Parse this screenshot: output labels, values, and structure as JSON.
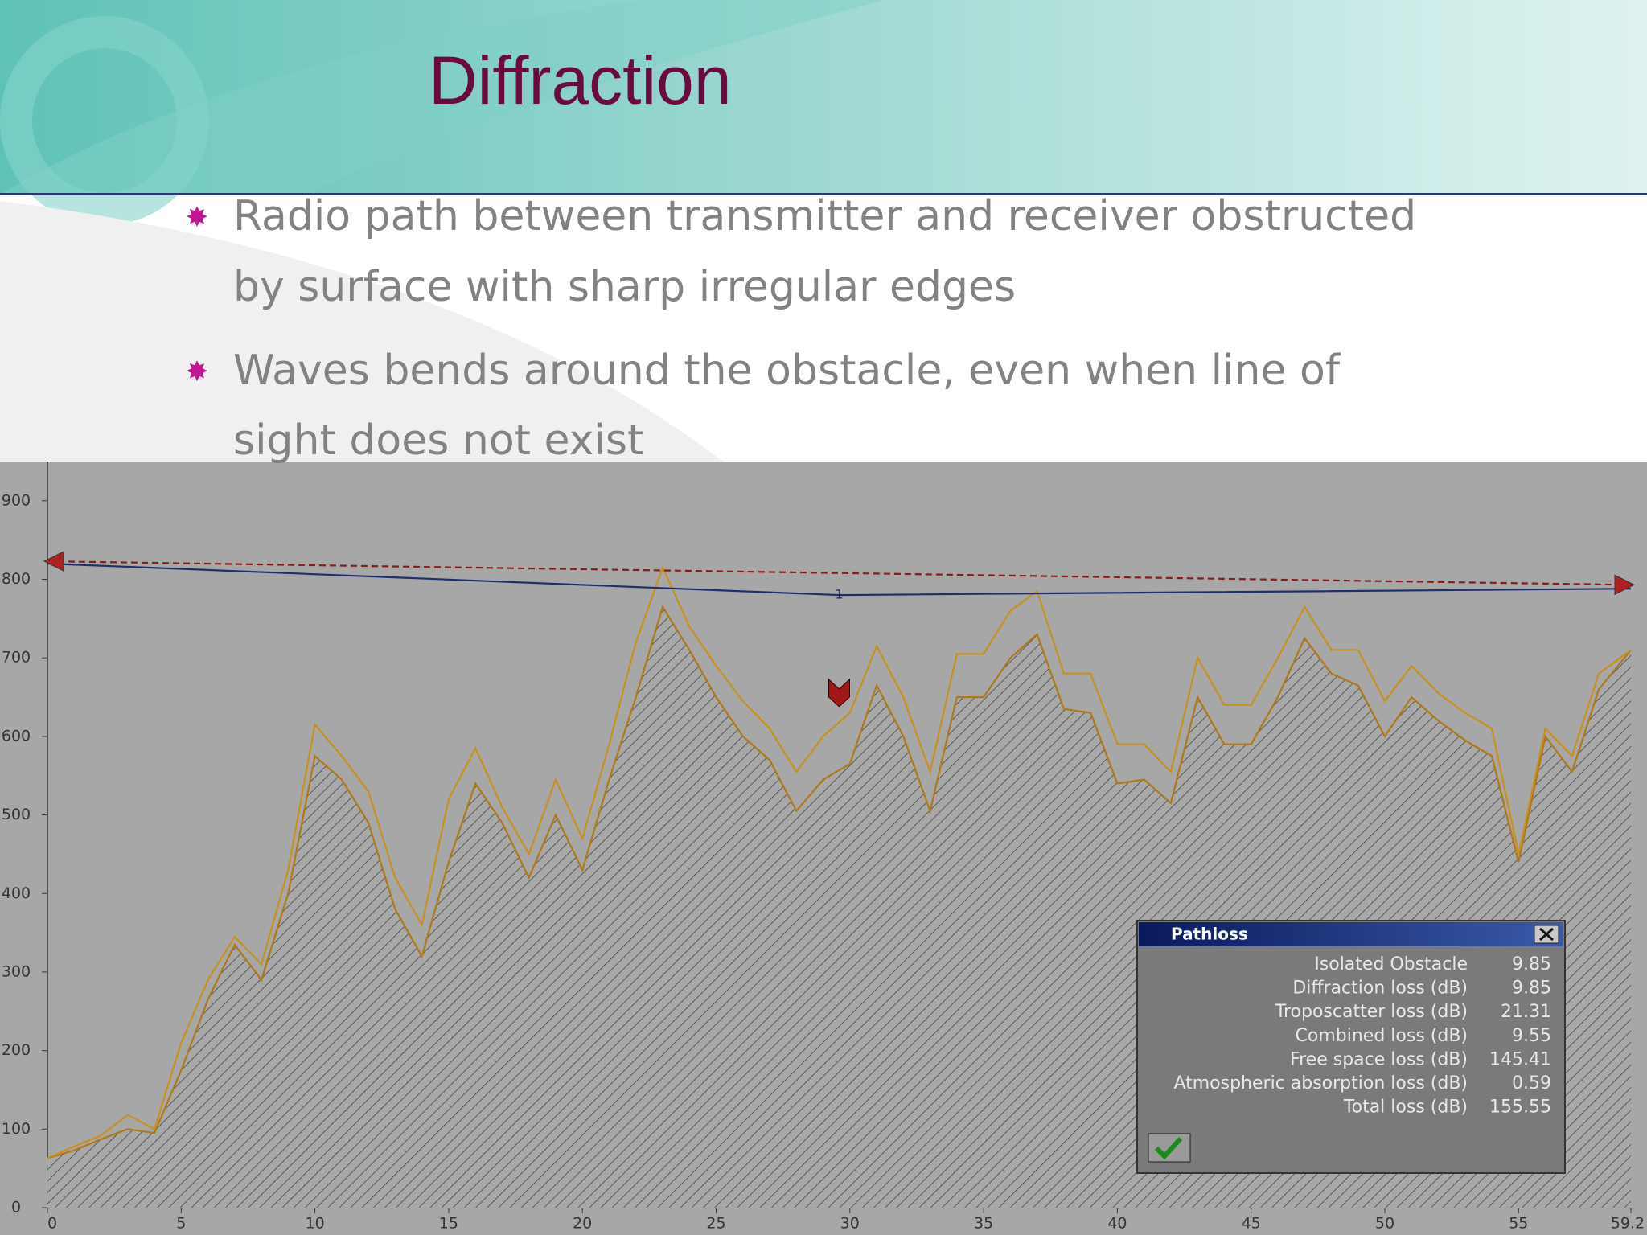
{
  "title": "Diffraction",
  "bullets": [
    "Radio path between transmitter and receiver obstructed",
    "by surface with sharp irregular edges",
    "Waves bends around the obstacle, even when line of",
    "sight does not exist"
  ],
  "chart_data": {
    "type": "line",
    "xlim": [
      0,
      59.2
    ],
    "xticks": [
      0,
      5,
      10,
      15,
      20,
      25,
      30,
      35,
      40,
      45,
      50,
      55,
      59.2
    ],
    "ylim": [
      0,
      950
    ],
    "yticks": [
      0,
      100,
      200,
      300,
      400,
      500,
      600,
      700,
      800,
      900
    ],
    "series": [
      {
        "color": "#b07818",
        "hatched": true,
        "x": [
          0,
          1,
          2,
          3,
          4,
          5,
          6,
          7,
          8,
          9,
          10,
          11,
          12,
          13,
          14,
          15,
          16,
          17,
          18,
          19,
          20,
          21,
          22,
          23,
          24,
          25,
          26,
          27,
          28,
          29,
          30,
          31,
          32,
          33,
          34,
          35,
          36,
          37,
          38,
          39,
          40,
          41,
          42,
          43,
          44,
          45,
          46,
          47,
          48,
          49,
          50,
          51,
          52,
          53,
          54,
          55,
          56,
          57,
          58,
          59.2
        ],
        "values": [
          63,
          73,
          87,
          100,
          95,
          175,
          265,
          335,
          290,
          400,
          575,
          545,
          490,
          380,
          320,
          440,
          540,
          490,
          420,
          500,
          430,
          545,
          650,
          765,
          710,
          650,
          600,
          570,
          505,
          545,
          565,
          665,
          600,
          505,
          650,
          650,
          700,
          730,
          635,
          630,
          540,
          545,
          515,
          650,
          590,
          590,
          650,
          725,
          680,
          665,
          600,
          650,
          620,
          595,
          575,
          440,
          600,
          555,
          660,
          710
        ]
      },
      {
        "color": "#c8901e",
        "x": [
          0,
          1,
          2,
          3,
          4,
          5,
          6,
          7,
          8,
          9,
          10,
          11,
          12,
          13,
          14,
          15,
          16,
          17,
          18,
          19,
          20,
          21,
          22,
          23,
          24,
          25,
          26,
          27,
          28,
          29,
          30,
          31,
          32,
          33,
          34,
          35,
          36,
          37,
          38,
          39,
          40,
          41,
          42,
          43,
          44,
          45,
          46,
          47,
          48,
          49,
          50,
          51,
          52,
          53,
          54,
          55,
          56,
          57,
          58,
          59.2
        ],
        "values": [
          63,
          78,
          92,
          118,
          100,
          210,
          290,
          345,
          310,
          430,
          615,
          575,
          530,
          420,
          360,
          520,
          585,
          510,
          450,
          545,
          470,
          590,
          720,
          815,
          740,
          690,
          645,
          610,
          555,
          600,
          630,
          715,
          650,
          555,
          705,
          705,
          760,
          785,
          680,
          680,
          590,
          590,
          555,
          700,
          640,
          640,
          700,
          765,
          710,
          710,
          645,
          690,
          655,
          630,
          610,
          450,
          610,
          575,
          680,
          710
        ]
      },
      {
        "color": "#1f2e6e",
        "x": [
          0,
          29.6,
          59.2
        ],
        "values": [
          820,
          780,
          788
        ]
      },
      {
        "color": "#8b1a1a",
        "dashed": true,
        "x": [
          0,
          59.2
        ],
        "values": [
          823,
          793
        ]
      }
    ],
    "annotations": [
      {
        "text": "1",
        "x": 29.6,
        "y": 780
      }
    ]
  },
  "dialog": {
    "title": "Pathloss",
    "rows": [
      [
        "Isolated Obstacle",
        9.85
      ],
      [
        "Diffraction loss (dB)",
        9.85
      ],
      [
        "Troposcatter loss (dB)",
        21.31
      ],
      [
        "Combined loss (dB)",
        9.55
      ],
      [
        "Free space loss (dB)",
        145.41
      ],
      [
        "Atmospheric absorption loss (dB)",
        0.59
      ],
      [
        "Total loss (dB)",
        155.55
      ]
    ]
  }
}
